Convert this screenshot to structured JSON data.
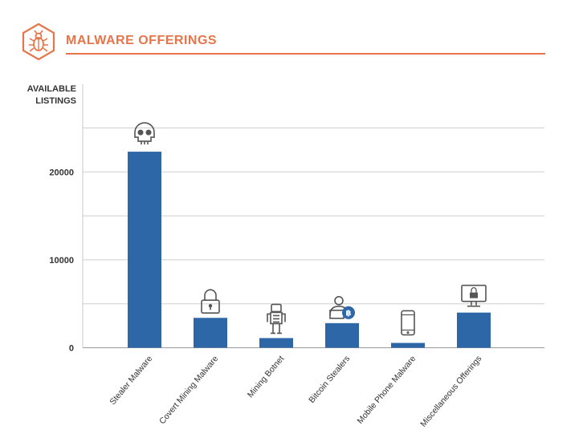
{
  "header": {
    "title": "MALWARE OFFERINGS",
    "icon": "bug-icon",
    "accent_color": "#e8744a"
  },
  "chart_data": {
    "type": "bar",
    "title": "MALWARE OFFERINGS",
    "ylabel_lines": [
      "AVAILABLE",
      "LISTINGS"
    ],
    "xlabel": "",
    "categories": [
      "Stealer Malware",
      "Covert Mining Malware",
      "Mining Botnet",
      "Bitcoin Stealers",
      "Mobile Phone Malware",
      "Miscellaneous Offerings"
    ],
    "values": [
      22300,
      3400,
      1100,
      2800,
      550,
      4000
    ],
    "category_icons": [
      "skull-icon",
      "padlock-icon",
      "robot-icon",
      "hacker-bitcoin-icon",
      "mobile-phone-icon",
      "monitor-lock-icon"
    ],
    "yticks": [
      0,
      10000,
      20000
    ],
    "ylim": [
      0,
      25000
    ],
    "grid": true,
    "bar_color": "#2e67a7",
    "legend": "none"
  }
}
